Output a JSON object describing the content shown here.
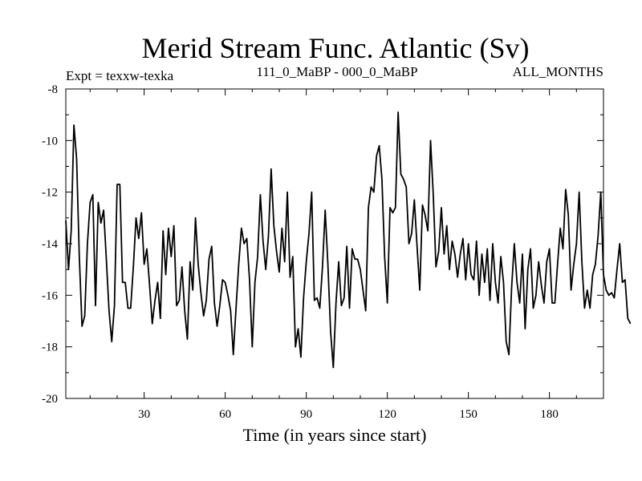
{
  "chart_data": {
    "type": "line",
    "title": "Merid Stream Func. Atlantic (Sv)",
    "subtitle_left": "Expt = texxw-texka",
    "subtitle_center": "111_0_MaBP - 000_0_MaBP",
    "subtitle_right": "ALL_MONTHS",
    "xlabel": "Time (in years since start)",
    "ylabel": "",
    "xlim": [
      1,
      200
    ],
    "ylim": [
      -20,
      -8
    ],
    "xticks": [
      30,
      60,
      90,
      120,
      150,
      180
    ],
    "yticks": [
      -8,
      -10,
      -12,
      -14,
      -16,
      -18,
      -20
    ],
    "series": [
      {
        "name": "Merid Stream Func. Atlantic",
        "color": "#000000",
        "x_start": 1,
        "x_step": 1,
        "values": [
          -13.1,
          -15.0,
          -13.5,
          -9.4,
          -10.7,
          -14.5,
          -17.2,
          -16.8,
          -14.0,
          -12.4,
          -12.1,
          -16.4,
          -12.4,
          -13.2,
          -12.7,
          -14.6,
          -16.6,
          -17.8,
          -16.4,
          -11.7,
          -11.7,
          -15.5,
          -15.5,
          -16.5,
          -16.5,
          -14.9,
          -13.0,
          -13.8,
          -12.8,
          -14.8,
          -14.2,
          -15.6,
          -17.1,
          -16.2,
          -15.5,
          -16.9,
          -13.5,
          -15.2,
          -13.4,
          -14.5,
          -13.3,
          -16.4,
          -16.2,
          -14.9,
          -16.6,
          -17.7,
          -14.7,
          -15.8,
          -13.0,
          -14.8,
          -15.9,
          -16.8,
          -16.2,
          -14.6,
          -14.1,
          -16.3,
          -17.2,
          -16.4,
          -15.4,
          -15.5,
          -16.0,
          -16.6,
          -18.3,
          -16.5,
          -14.8,
          -13.4,
          -14.0,
          -13.8,
          -15.4,
          -18.0,
          -15.5,
          -14.5,
          -12.1,
          -13.9,
          -15.0,
          -13.7,
          -11.1,
          -13.3,
          -14.3,
          -15.1,
          -13.4,
          -14.7,
          -12.0,
          -15.3,
          -14.5,
          -18.0,
          -17.3,
          -18.4,
          -16.1,
          -14.7,
          -13.6,
          -12.0,
          -16.2,
          -16.1,
          -16.5,
          -14.9,
          -12.7,
          -14.8,
          -17.4,
          -18.8,
          -16.3,
          -14.7,
          -16.4,
          -16.1,
          -14.1,
          -16.5,
          -14.2,
          -14.6,
          -14.6,
          -15.0,
          -15.8,
          -16.6,
          -12.6,
          -11.8,
          -12.0,
          -10.6,
          -10.2,
          -11.5,
          -14.5,
          -16.3,
          -12.6,
          -12.8,
          -12.6,
          -8.9,
          -11.3,
          -11.5,
          -11.8,
          -14.0,
          -13.6,
          -12.3,
          -14.1,
          -15.8,
          -12.5,
          -12.9,
          -13.5,
          -10.0,
          -12.1,
          -14.9,
          -14.3,
          -12.6,
          -14.4,
          -13.3,
          -15.0,
          -13.9,
          -14.4,
          -15.3,
          -14.4,
          -13.8,
          -15.4,
          -14.0,
          -15.2,
          -15.4,
          -13.9,
          -16.0,
          -14.4,
          -15.5,
          -14.2,
          -16.2,
          -14.0,
          -15.5,
          -16.3,
          -14.5,
          -15.5,
          -17.8,
          -18.3,
          -15.7,
          -14.0,
          -15.5,
          -16.3,
          -14.4,
          -17.3,
          -15.0,
          -14.2,
          -16.5,
          -16.0,
          -14.7,
          -15.6,
          -16.3,
          -14.7,
          -14.2,
          -16.3,
          -16.3,
          -14.8,
          -13.4,
          -14.2,
          -11.9,
          -12.9,
          -15.8,
          -14.8,
          -14.0,
          -12.0,
          -14.7,
          -16.5,
          -15.8,
          -16.5,
          -15.2,
          -14.8,
          -13.7,
          -12.0,
          -15.2,
          -15.8,
          -16.0,
          -15.9,
          -16.1,
          -15.0,
          -14.0,
          -15.5,
          -15.4,
          -16.9,
          -17.1
        ]
      }
    ]
  }
}
